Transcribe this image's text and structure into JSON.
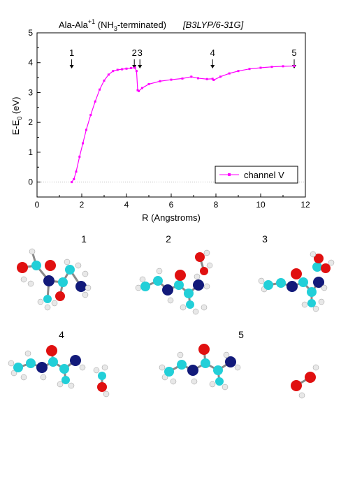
{
  "figure": {
    "title_main": "Ala-Ala",
    "title_sup": "+1",
    "title_paren_open": " (NH",
    "title_sub": "3",
    "title_paren_close": "-terminated)",
    "title_method": "[B3LYP/6-31G]",
    "ylabel_main": "E-E",
    "ylabel_sub": "0",
    "ylabel_unit": " (eV)",
    "xlabel": "R (Angstroms)",
    "legend_label": "channel V",
    "markers": [
      {
        "label": "1",
        "x": 1.55
      },
      {
        "label": "2",
        "x": 4.35
      },
      {
        "label": "3",
        "x": 4.6
      },
      {
        "label": "4",
        "x": 7.85
      },
      {
        "label": "5",
        "x": 11.5
      }
    ],
    "structures": [
      {
        "label": "1"
      },
      {
        "label": "2"
      },
      {
        "label": "3"
      },
      {
        "label": "4"
      },
      {
        "label": "5"
      }
    ],
    "colors": {
      "curve": "#ff00ff",
      "carbon": "#22cfd8",
      "nitrogen": "#121a7a",
      "oxygen": "#e01010",
      "hydrogen": "#e8e8e8",
      "bond": "#8a8a8a"
    }
  },
  "chart_data": {
    "type": "line",
    "xlabel": "R (Angstroms)",
    "ylabel": "E-E0 (eV)",
    "xlim": [
      0,
      12
    ],
    "ylim": [
      -0.5,
      5
    ],
    "xticks": [
      "0",
      "2",
      "4",
      "6",
      "8",
      "10",
      "12"
    ],
    "yticks": [
      "0",
      "1",
      "2",
      "3",
      "4",
      "5"
    ],
    "legend": "bottom-right",
    "series": [
      {
        "name": "channel V",
        "x": [
          1.55,
          1.65,
          1.75,
          1.9,
          2.05,
          2.2,
          2.4,
          2.6,
          2.8,
          3.0,
          3.2,
          3.4,
          3.6,
          3.8,
          4.0,
          4.2,
          4.38,
          4.45,
          4.5,
          4.55,
          4.7,
          5.0,
          5.5,
          6.0,
          6.5,
          6.9,
          7.2,
          7.6,
          7.85,
          7.9,
          8.2,
          8.6,
          9.0,
          9.5,
          10.0,
          10.5,
          11.0,
          11.5
        ],
        "values": [
          0.0,
          0.1,
          0.35,
          0.85,
          1.3,
          1.75,
          2.25,
          2.7,
          3.1,
          3.4,
          3.6,
          3.72,
          3.76,
          3.78,
          3.8,
          3.82,
          3.83,
          3.72,
          3.08,
          3.05,
          3.15,
          3.28,
          3.38,
          3.43,
          3.47,
          3.53,
          3.48,
          3.45,
          3.46,
          3.42,
          3.53,
          3.64,
          3.72,
          3.79,
          3.83,
          3.86,
          3.88,
          3.89
        ]
      }
    ]
  }
}
